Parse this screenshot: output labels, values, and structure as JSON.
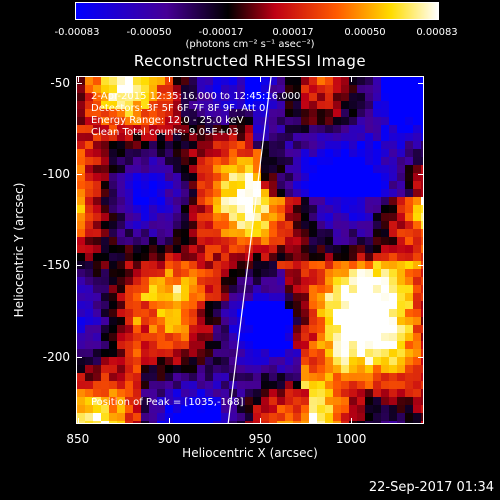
{
  "colorbar": {
    "ticks": [
      "-0.00083",
      "-0.00050",
      "-0.00017",
      "0.00017",
      "0.00050",
      "0.00083"
    ],
    "units": "(photons cm⁻² s⁻¹ asec⁻²)"
  },
  "title": "Reconstructed RHESSI Image",
  "info": {
    "time": "2-Apr-2015 12:35:16.000 to 12:45:16.000",
    "detectors": "Detectors: 3F 5F 6F 7F 8F 9F, Att 0",
    "energy": "Energy Range: 12.0 - 25.0 keV",
    "clean": "Clean    Total counts: 9.05E+03",
    "peak": "Position of Peak = [1035,-168]"
  },
  "axes": {
    "xlabel": "Heliocentric X (arcsec)",
    "ylabel": "Heliocentric Y (arcsec)",
    "xticks": [
      "850",
      "900",
      "950",
      "1000"
    ],
    "yticks": [
      "-50",
      "-100",
      "-150",
      "-200"
    ]
  },
  "footer": "22-Sep-2017 01:34",
  "chart_data": {
    "type": "heatmap",
    "title": "Reconstructed RHESSI Image",
    "xlabel": "Heliocentric X (arcsec)",
    "ylabel": "Heliocentric Y (arcsec)",
    "xlim": [
      849,
      1040
    ],
    "ylim": [
      -237,
      -46
    ],
    "colorbar_range": [
      -0.00083,
      0.00083
    ],
    "colormap": "blue-purple-red-yellow-white",
    "peak": [
      1035,
      -168
    ]
  }
}
